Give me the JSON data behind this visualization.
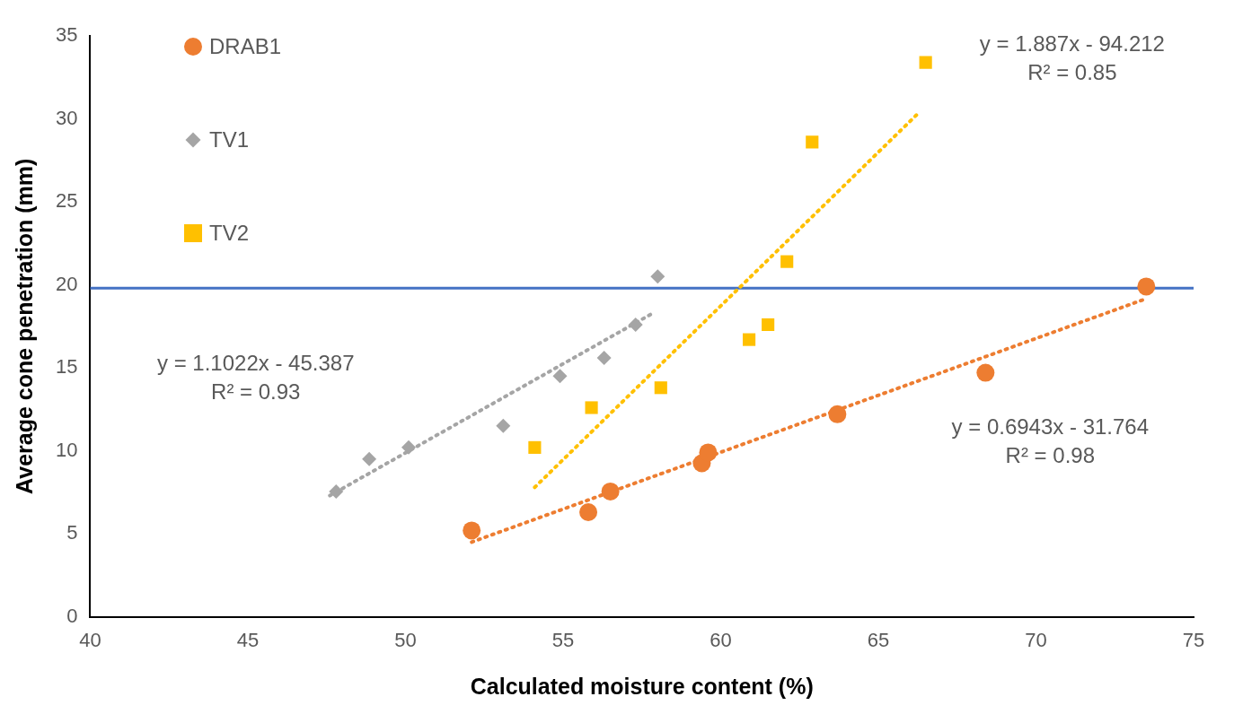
{
  "chart_data": {
    "type": "scatter",
    "xlabel": "Calculated moisture content (%)",
    "ylabel": "Average cone penetration (mm)",
    "xlim": [
      40,
      75
    ],
    "xticks": [
      40,
      45,
      50,
      55,
      60,
      65,
      70,
      75
    ],
    "ylim": [
      0,
      35
    ],
    "yticks": [
      0,
      5,
      10,
      15,
      20,
      25,
      30,
      35
    ],
    "grid": false,
    "legend": "top left",
    "series": [
      {
        "name": "DRAB1",
        "color": "#ed7d31",
        "marker": "circle",
        "x": [
          52.1,
          55.8,
          56.5,
          59.4,
          59.6,
          63.7,
          68.4,
          73.5
        ],
        "values": [
          5.2,
          6.3,
          7.55,
          9.25,
          9.9,
          12.2,
          14.7,
          19.9
        ]
      },
      {
        "name": "TV1",
        "color": "#a5a5a5",
        "marker": "diamond",
        "x": [
          47.8,
          48.85,
          50.1,
          53.1,
          54.9,
          56.3,
          57.3,
          58.0
        ],
        "values": [
          7.55,
          9.5,
          10.2,
          11.5,
          14.5,
          15.6,
          17.6,
          20.5
        ]
      },
      {
        "name": "TV2",
        "color": "#ffc000",
        "marker": "square",
        "x": [
          54.1,
          55.9,
          58.1,
          60.9,
          61.5,
          62.1,
          62.9,
          66.5
        ],
        "values": [
          10.2,
          12.6,
          13.8,
          16.7,
          17.6,
          21.4,
          28.6,
          33.4
        ]
      },
      {
        "type": "line",
        "color": "#ed7d31",
        "line_style": "dotted",
        "marker": "none",
        "x": [
          52.1,
          73.4
        ],
        "values": [
          4.5,
          19.1
        ]
      },
      {
        "type": "line",
        "color": "#a5a5a5",
        "line_style": "dotted",
        "marker": "none",
        "x": [
          47.6,
          57.9
        ],
        "values": [
          7.3,
          18.35
        ]
      },
      {
        "type": "line",
        "color": "#ffc000",
        "line_style": "dotted",
        "marker": "none",
        "x": [
          54.1,
          66.3
        ],
        "values": [
          7.8,
          30.4
        ]
      }
    ],
    "ref_lines": [
      {
        "axis": "y",
        "value": 19.8,
        "color": "#4472c4"
      }
    ],
    "annotations": [
      "y = 1.1022x - 45.387\nR² = 0.93",
      "y = 1.887x - 94.212\nR² = 0.85",
      "y = 0.6943x - 31.764\nR² = 0.98"
    ]
  }
}
